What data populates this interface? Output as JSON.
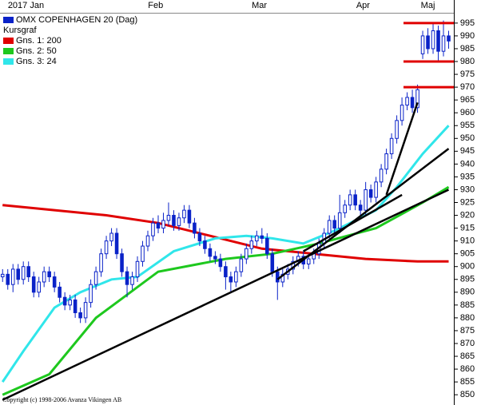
{
  "chart_data": {
    "type": "candlestick",
    "title": "OMX COPENHAGEN 20 (Dag)",
    "title_color": "#0a22c8",
    "copyright": "Copyright (c) 1998-2006 Avanza Vikingen AB",
    "xlim": [
      -0.5,
      87
    ],
    "xticks": [
      {
        "value": 4.5,
        "label": "2017 Jan"
      },
      {
        "value": 29.5,
        "label": "Feb"
      },
      {
        "value": 49.5,
        "label": "Mar"
      },
      {
        "value": 69.5,
        "label": "Apr"
      },
      {
        "value": 82,
        "label": "Maj"
      }
    ],
    "ylim": [
      846,
      1004
    ],
    "yticks": [
      850,
      855,
      860,
      865,
      870,
      875,
      880,
      885,
      890,
      895,
      900,
      905,
      910,
      915,
      920,
      925,
      930,
      935,
      940,
      945,
      950,
      955,
      960,
      965,
      970,
      975,
      980,
      985,
      990,
      995
    ],
    "candles": {
      "name": "Kursgraf",
      "color": "#0a22c8",
      "open": [
        896,
        897,
        893,
        899,
        895,
        900,
        896,
        890,
        894,
        898,
        896,
        892,
        888,
        885,
        887,
        882,
        880,
        886,
        893,
        898,
        905,
        910,
        913,
        905,
        898,
        893,
        896,
        902,
        908,
        912,
        917,
        915,
        918,
        920,
        916,
        919,
        922,
        917,
        913,
        910,
        907,
        904,
        903,
        900,
        896,
        894,
        898,
        903,
        907,
        910,
        912,
        911,
        905,
        898,
        894,
        897,
        899,
        902,
        904,
        901,
        903,
        905,
        909,
        913,
        918,
        915,
        921,
        924,
        928,
        924,
        922,
        930,
        927,
        933,
        938,
        944,
        950,
        957,
        963,
        966,
        962,
        983,
        990,
        985,
        992,
        984,
        990
      ],
      "high": [
        899,
        899,
        901,
        901,
        902,
        902,
        898,
        896,
        900,
        900,
        898,
        894,
        890,
        889,
        889,
        884,
        888,
        895,
        900,
        907,
        912,
        915,
        915,
        907,
        900,
        898,
        904,
        910,
        914,
        919,
        920,
        921,
        925,
        922,
        921,
        924,
        924,
        919,
        915,
        912,
        909,
        906,
        905,
        902,
        898,
        900,
        905,
        909,
        912,
        914,
        915,
        913,
        907,
        900,
        899,
        901,
        904,
        906,
        906,
        905,
        907,
        911,
        915,
        920,
        920,
        928,
        926,
        930,
        930,
        926,
        933,
        932,
        935,
        940,
        946,
        952,
        959,
        966,
        968,
        969,
        971,
        992,
        993,
        995,
        994,
        996,
        992
      ],
      "low": [
        894,
        891,
        890,
        893,
        893,
        894,
        888,
        888,
        892,
        894,
        890,
        886,
        883,
        883,
        880,
        878,
        878,
        884,
        891,
        896,
        903,
        908,
        903,
        896,
        888,
        891,
        894,
        900,
        906,
        910,
        913,
        913,
        916,
        914,
        914,
        917,
        915,
        911,
        908,
        905,
        902,
        901,
        898,
        891,
        890,
        892,
        896,
        901,
        905,
        908,
        909,
        903,
        896,
        887,
        892,
        895,
        897,
        900,
        899,
        899,
        901,
        903,
        907,
        911,
        913,
        913,
        919,
        922,
        922,
        920,
        920,
        925,
        925,
        931,
        936,
        942,
        948,
        955,
        961,
        960,
        960,
        981,
        983,
        983,
        980,
        982,
        985
      ],
      "close": [
        897,
        893,
        899,
        895,
        900,
        896,
        890,
        894,
        898,
        896,
        892,
        888,
        885,
        887,
        882,
        880,
        886,
        893,
        898,
        905,
        910,
        913,
        905,
        898,
        893,
        896,
        902,
        908,
        912,
        917,
        915,
        918,
        920,
        916,
        919,
        922,
        917,
        913,
        910,
        907,
        904,
        903,
        900,
        896,
        894,
        898,
        903,
        907,
        910,
        912,
        911,
        905,
        898,
        894,
        897,
        899,
        902,
        904,
        901,
        903,
        905,
        909,
        913,
        918,
        915,
        921,
        924,
        928,
        924,
        922,
        930,
        927,
        933,
        938,
        944,
        950,
        957,
        963,
        966,
        962,
        969,
        990,
        985,
        992,
        984,
        990,
        988
      ]
    },
    "series": [
      {
        "name": "Gns. 1: 200",
        "color": "#e00000",
        "x": [
          0,
          10,
          20,
          30,
          40,
          50,
          60,
          70,
          80,
          86
        ],
        "values": [
          924,
          922,
          920,
          917,
          912,
          907,
          905,
          903,
          902,
          902
        ]
      },
      {
        "name": "Gns. 2: 50",
        "color": "#1ec81e",
        "x": [
          0,
          9,
          18,
          30,
          43,
          52,
          61,
          72,
          81,
          86
        ],
        "values": [
          850,
          858,
          880,
          898,
          903,
          905,
          909,
          915,
          925,
          931
        ]
      },
      {
        "name": "Gns. 3: 24",
        "color": "#30e6ea",
        "x": [
          0,
          4,
          10,
          15,
          21,
          26,
          33,
          41,
          47,
          52,
          58,
          64,
          72,
          76,
          81,
          86
        ],
        "values": [
          855,
          867,
          884,
          890,
          895,
          896,
          906,
          911,
          912,
          911,
          909,
          914,
          922,
          931,
          944,
          955
        ]
      }
    ],
    "trend_lines": [
      {
        "color": "#000000",
        "x": [
          0,
          86
        ],
        "values": [
          848,
          930
        ]
      },
      {
        "color": "#000000",
        "x": [
          53,
          86
        ],
        "values": [
          895,
          946
        ]
      },
      {
        "color": "#000000",
        "x": [
          58,
          77
        ],
        "values": [
          906,
          928
        ]
      },
      {
        "color": "#000000",
        "x": [
          74,
          80
        ],
        "values": [
          928,
          964
        ]
      },
      {
        "color": "#e00000",
        "x": [
          77.3,
          87
        ],
        "values": [
          995,
          995
        ]
      },
      {
        "color": "#e00000",
        "x": [
          77.3,
          87
        ],
        "values": [
          980,
          980
        ]
      },
      {
        "color": "#e00000",
        "x": [
          77.3,
          87
        ],
        "values": [
          970,
          970
        ]
      }
    ]
  }
}
